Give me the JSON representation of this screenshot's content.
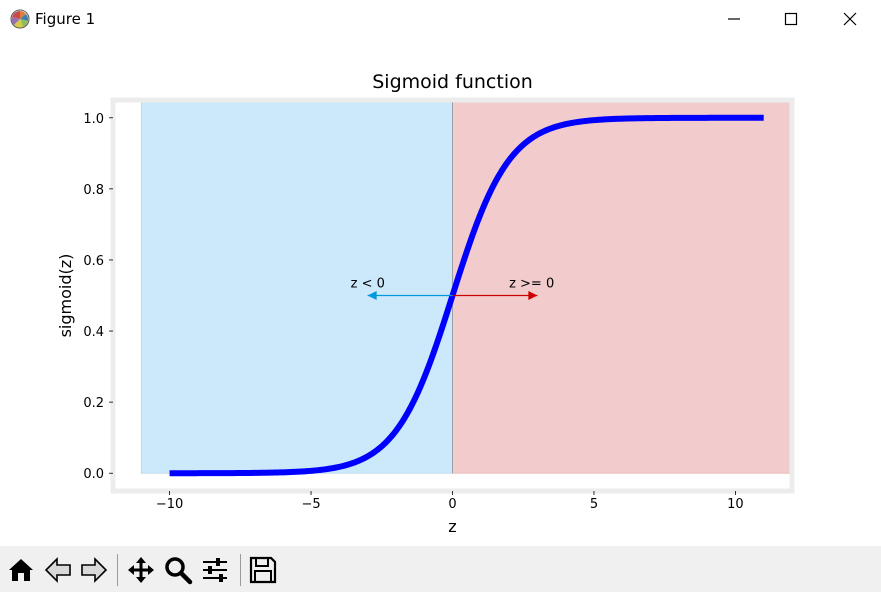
{
  "window": {
    "title": "Figure 1",
    "icons": {
      "app": "matplotlib-logo-icon",
      "minimize": "minimize-icon",
      "maximize": "maximize-icon",
      "close": "close-icon"
    }
  },
  "toolbar": {
    "buttons": [
      {
        "name": "home",
        "icon": "home-icon"
      },
      {
        "name": "back",
        "icon": "back-arrow-icon"
      },
      {
        "name": "forward",
        "icon": "forward-arrow-icon"
      },
      {
        "name": "pan",
        "icon": "pan-move-icon"
      },
      {
        "name": "zoom",
        "icon": "zoom-magnifier-icon"
      },
      {
        "name": "configure",
        "icon": "configure-subplots-icon"
      },
      {
        "name": "save",
        "icon": "save-floppy-icon"
      }
    ]
  },
  "chart_data": {
    "type": "line",
    "title": "Sigmoid function",
    "xlabel": "z",
    "ylabel": "sigmoid(z)",
    "xlim": [
      -12.0,
      12.0
    ],
    "ylim": [
      -0.05,
      1.05
    ],
    "xticks": [
      -10,
      -5,
      0,
      5,
      10
    ],
    "xtick_labels": [
      "−10",
      "−5",
      "0",
      "5",
      "10"
    ],
    "yticks": [
      0.0,
      0.2,
      0.4,
      0.6,
      0.8,
      1.0
    ],
    "ytick_labels": [
      "0.0",
      "0.2",
      "0.4",
      "0.6",
      "0.8",
      "1.0"
    ],
    "series": [
      {
        "color": "#0000ff",
        "x": [
          -10,
          -9,
          -8,
          -7,
          -6,
          -5,
          -4,
          -3,
          -2,
          -1,
          0,
          1,
          2,
          3,
          4,
          5,
          6,
          7,
          8,
          9,
          10,
          11
        ],
        "y": [
          0.0,
          0.0001,
          0.0003,
          0.0009,
          0.0025,
          0.0067,
          0.018,
          0.0474,
          0.1192,
          0.2689,
          0.5,
          0.7311,
          0.8808,
          0.9526,
          0.982,
          0.9933,
          0.9975,
          0.9991,
          0.9997,
          0.9999,
          1.0,
          1.0
        ]
      }
    ],
    "regions": [
      {
        "x": [
          -11,
          0
        ],
        "y": [
          0,
          1.05
        ],
        "color": "#cce8fb"
      },
      {
        "x": [
          0,
          12
        ],
        "y": [
          0,
          1.05
        ],
        "color": "#f2cbcc"
      }
    ],
    "annotations": [
      {
        "text": "z < 0",
        "text_xy": [
          -3.6,
          0.5
        ],
        "arrow_to": [
          -3,
          0.5
        ],
        "arrow_from": [
          0,
          0.5
        ],
        "color": "#0099dd"
      },
      {
        "text": "z >= 0",
        "text_xy": [
          2.0,
          0.5
        ],
        "arrow_to": [
          3,
          0.5
        ],
        "arrow_from": [
          0,
          0.5
        ],
        "color": "#cc0000"
      }
    ],
    "grid": false,
    "frame_color": "#ececec"
  }
}
